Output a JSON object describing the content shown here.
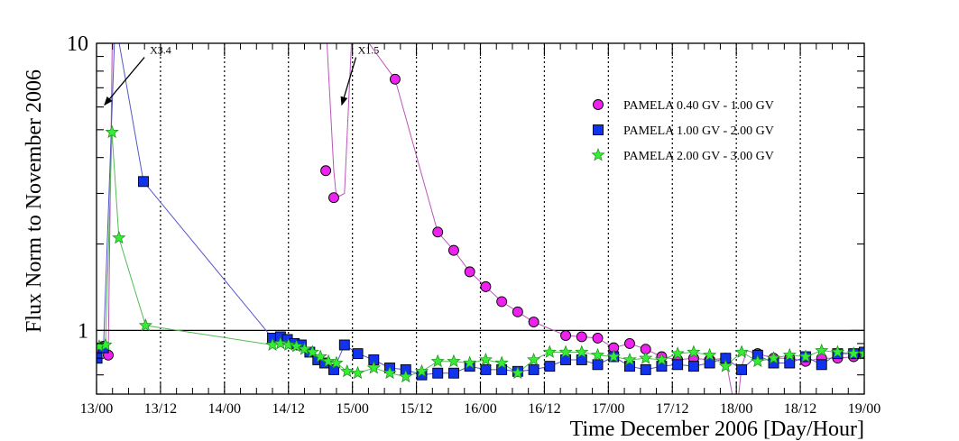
{
  "chart_data": {
    "type": "scatter",
    "title": "",
    "xlabel": "Time December 2006 [Day/Hour]",
    "ylabel": "Flux Norm to November 2006",
    "yscale": "log",
    "ylim": [
      0.6,
      10
    ],
    "xlim": [
      0,
      144
    ],
    "xunit": "hours since 13/00",
    "x_ticks": [
      0,
      12,
      24,
      36,
      48,
      60,
      72,
      84,
      96,
      108,
      120,
      132,
      144
    ],
    "x_tick_labels": [
      "13/00",
      "13/12",
      "14/00",
      "14/12",
      "15/00",
      "15/12",
      "16/00",
      "16/12",
      "17/00",
      "17/12",
      "18/00",
      "18/12",
      "19/00"
    ],
    "y_tick_labels": [
      "1",
      "10"
    ],
    "y_tick_values": [
      1,
      10
    ],
    "reference_line": 1,
    "annotations": [
      {
        "text": "X3.4",
        "x": 10,
        "y": 9.2,
        "arrow_to_x": 1.5,
        "arrow_to_y": 6.1
      },
      {
        "text": "X1.5",
        "x": 49,
        "y": 9.2,
        "arrow_to_x": 46,
        "arrow_to_y": 6.1
      }
    ],
    "series": [
      {
        "name": "PAMELA 0.40 GV - 1.00 GV",
        "marker": "circle",
        "color": "#ee22ee",
        "line_color": "#bb55bb",
        "x": [
          0.5,
          1.2,
          2.2,
          43,
          44.5,
          56,
          64,
          67,
          70,
          73,
          76,
          79,
          82,
          88,
          91,
          94,
          97,
          100,
          103,
          106,
          109,
          112,
          115,
          118,
          124,
          127,
          130,
          133,
          136,
          139,
          142,
          144
        ],
        "y": [
          0.87,
          0.88,
          0.82,
          3.6,
          2.9,
          7.5,
          2.2,
          1.9,
          1.6,
          1.42,
          1.26,
          1.16,
          1.07,
          0.96,
          0.95,
          0.94,
          0.87,
          0.9,
          0.86,
          0.81,
          0.79,
          0.8,
          0.79,
          0.8,
          0.83,
          0.8,
          0.8,
          0.78,
          0.8,
          0.8,
          0.81,
          0.83
        ],
        "curve_x": [
          0.5,
          1.2,
          2.2,
          3.0,
          43,
          44.5,
          45,
          46.5,
          48.0,
          56,
          64,
          67,
          70,
          73,
          76,
          79,
          82,
          88,
          91,
          94,
          97,
          100,
          103,
          106,
          109,
          112,
          115,
          118,
          120,
          121,
          122,
          124,
          127,
          130,
          133,
          136,
          139,
          142,
          144
        ],
        "curve_y": [
          0.87,
          0.88,
          0.82,
          12,
          12,
          3.6,
          2.9,
          3.0,
          12,
          7.5,
          2.2,
          1.9,
          1.6,
          1.42,
          1.26,
          1.16,
          1.07,
          0.96,
          0.95,
          0.94,
          0.87,
          0.9,
          0.86,
          0.81,
          0.79,
          0.8,
          0.79,
          0.8,
          0.5,
          0.75,
          0.85,
          0.83,
          0.8,
          0.8,
          0.78,
          0.8,
          0.8,
          0.81,
          0.83
        ]
      },
      {
        "name": "PAMELA 1.00 GV - 2.00 GV",
        "marker": "square",
        "color": "#1133ee",
        "line_color": "#5555cc",
        "x": [
          0.1,
          1.3,
          8.8,
          33,
          34.5,
          35.8,
          37.1,
          38.4,
          40.0,
          41.5,
          42.8,
          44.5,
          46.5,
          49,
          52,
          55,
          58,
          61,
          64,
          67,
          70,
          73,
          76,
          79,
          82,
          85,
          88,
          91,
          94,
          97,
          100,
          103,
          106,
          109,
          112,
          115,
          118,
          121,
          124,
          127,
          130,
          133,
          136,
          139,
          142,
          144
        ],
        "y": [
          0.8,
          0.87,
          3.3,
          0.94,
          0.95,
          0.93,
          0.9,
          0.89,
          0.84,
          0.79,
          0.77,
          0.73,
          0.89,
          0.83,
          0.79,
          0.74,
          0.73,
          0.7,
          0.71,
          0.71,
          0.75,
          0.73,
          0.73,
          0.72,
          0.73,
          0.75,
          0.79,
          0.79,
          0.76,
          0.81,
          0.75,
          0.73,
          0.75,
          0.76,
          0.75,
          0.77,
          0.8,
          0.73,
          0.82,
          0.77,
          0.77,
          0.81,
          0.76,
          0.83,
          0.83,
          0.84
        ],
        "curve_x": [
          0.1,
          1.3,
          3.5,
          8.8,
          33,
          34.5,
          35.8,
          37.1,
          38.4,
          40.0,
          41.5,
          42.8,
          44.5,
          46.5,
          49,
          52,
          55,
          58,
          61,
          64,
          67,
          70,
          73,
          76,
          79,
          82,
          85,
          88,
          91,
          94,
          97,
          100,
          103,
          106,
          109,
          112,
          115,
          118,
          121,
          124,
          127,
          130,
          133,
          136,
          139,
          142,
          144
        ],
        "curve_y": [
          0.8,
          0.87,
          12,
          3.3,
          0.94,
          0.95,
          0.93,
          0.9,
          0.89,
          0.84,
          0.79,
          0.77,
          0.73,
          0.89,
          0.83,
          0.79,
          0.74,
          0.73,
          0.7,
          0.71,
          0.71,
          0.75,
          0.73,
          0.73,
          0.72,
          0.73,
          0.75,
          0.79,
          0.79,
          0.76,
          0.81,
          0.75,
          0.73,
          0.75,
          0.76,
          0.75,
          0.77,
          0.8,
          0.73,
          0.82,
          0.77,
          0.77,
          0.81,
          0.76,
          0.83,
          0.83,
          0.84
        ]
      },
      {
        "name": "PAMELA 2.00 GV - 3.00 GV",
        "marker": "star",
        "color": "#33ee33",
        "line_color": "#55bb55",
        "x": [
          0.5,
          1.7,
          2.9,
          4.2,
          9.2,
          33,
          34.5,
          36,
          37.5,
          39,
          40.5,
          42,
          43.5,
          45,
          47,
          49,
          52,
          55,
          58,
          61,
          64,
          67,
          70,
          73,
          76,
          79,
          82,
          85,
          88,
          91,
          94,
          97,
          100,
          103,
          106,
          109,
          112,
          115,
          118,
          121,
          124,
          127,
          130,
          133,
          136,
          139,
          142,
          144
        ],
        "y": [
          0.88,
          0.89,
          4.9,
          2.1,
          1.04,
          0.89,
          0.9,
          0.89,
          0.88,
          0.86,
          0.84,
          0.81,
          0.78,
          0.77,
          0.72,
          0.71,
          0.74,
          0.71,
          0.69,
          0.72,
          0.78,
          0.78,
          0.77,
          0.79,
          0.77,
          0.71,
          0.79,
          0.84,
          0.84,
          0.84,
          0.82,
          0.81,
          0.79,
          0.8,
          0.79,
          0.83,
          0.84,
          0.82,
          0.75,
          0.84,
          0.78,
          0.8,
          0.82,
          0.81,
          0.85,
          0.84,
          0.83,
          0.83
        ],
        "curve_x": [
          0.5,
          1.7,
          2.9,
          4.2,
          9.2,
          33,
          34.5,
          36,
          37.5,
          39,
          40.5,
          42,
          43.5,
          45,
          47,
          49,
          52,
          55,
          58,
          61,
          64,
          67,
          70,
          73,
          76,
          79,
          82,
          85,
          88,
          91,
          94,
          97,
          100,
          103,
          106,
          109,
          112,
          115,
          118,
          121,
          124,
          127,
          130,
          133,
          136,
          139,
          142,
          144
        ],
        "curve_y": [
          0.88,
          0.89,
          4.9,
          2.1,
          1.04,
          0.89,
          0.9,
          0.89,
          0.88,
          0.86,
          0.84,
          0.81,
          0.78,
          0.77,
          0.72,
          0.71,
          0.74,
          0.71,
          0.69,
          0.72,
          0.78,
          0.78,
          0.77,
          0.79,
          0.77,
          0.71,
          0.79,
          0.84,
          0.84,
          0.84,
          0.82,
          0.81,
          0.79,
          0.8,
          0.79,
          0.83,
          0.84,
          0.82,
          0.75,
          0.84,
          0.78,
          0.8,
          0.82,
          0.81,
          0.85,
          0.84,
          0.83,
          0.83
        ]
      }
    ]
  }
}
